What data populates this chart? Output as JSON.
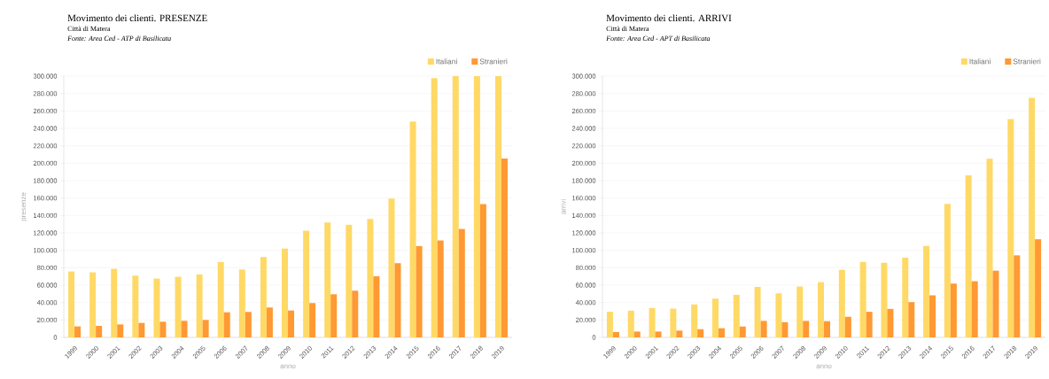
{
  "chart_data": [
    {
      "type": "bar",
      "title": "Movimento dei clienti. PRESENZE",
      "subtitle": "Città di Matera",
      "annotations": [
        "Fonte: Area Ced - ATP di Basilicata"
      ],
      "xlabel": "anno",
      "ylabel": "presenze",
      "categories": [
        "1999",
        "2000",
        "2001",
        "2002",
        "2003",
        "2004",
        "2005",
        "2006",
        "2007",
        "2008",
        "2009",
        "2010",
        "2011",
        "2012",
        "2013",
        "2014",
        "2015",
        "2016",
        "2017",
        "2018",
        "2019"
      ],
      "series": [
        {
          "name": "Italiani",
          "color": "#ffd966",
          "values": [
            75700,
            74700,
            78700,
            70900,
            67500,
            69600,
            72300,
            86500,
            78000,
            92300,
            102000,
            122500,
            132000,
            129300,
            136000,
            159500,
            248000,
            297600,
            300000,
            300000,
            300000
          ]
        },
        {
          "name": "Stranieri",
          "color": "#ff9933",
          "values": [
            12600,
            13200,
            14900,
            16600,
            18000,
            19000,
            20000,
            28800,
            29200,
            34300,
            30900,
            39400,
            49500,
            53600,
            70200,
            85200,
            104900,
            111300,
            124500,
            153000,
            205300
          ]
        }
      ],
      "ylim": [
        0,
        300000
      ],
      "yticks": [
        0,
        {
          "value": 20000,
          "label": "20.000"
        },
        {
          "value": 40000,
          "label": "40.000"
        },
        {
          "value": 60000,
          "label": "60.000"
        },
        {
          "value": 80000,
          "label": "80.000"
        },
        {
          "value": 100000,
          "label": "100.000"
        },
        {
          "value": 120000,
          "label": "120.000"
        },
        {
          "value": 140000,
          "label": "140.000"
        },
        {
          "value": 160000,
          "label": "160.000"
        },
        {
          "value": 180000,
          "label": "180.000"
        },
        {
          "value": 200000,
          "label": "200.000"
        },
        {
          "value": 220000,
          "label": "220.000"
        },
        {
          "value": 240000,
          "label": "240.000"
        },
        {
          "value": 260000,
          "label": "260.000"
        },
        {
          "value": 280000,
          "label": "280.000"
        },
        {
          "value": 300000,
          "label": "300.000"
        }
      ],
      "grid": "y",
      "legend": "top right"
    },
    {
      "type": "bar",
      "title": "Movimento dei clienti. ARRIVI",
      "subtitle": "Città di Matera",
      "annotations": [
        "Fonte: Area Ced - APT di Basilicata"
      ],
      "xlabel": "anno",
      "ylabel": "arrivi",
      "categories": [
        "1999",
        "2000",
        "2001",
        "2002",
        "2003",
        "2004",
        "2005",
        "2006",
        "2007",
        "2008",
        "2009",
        "2010",
        "2011",
        "2012",
        "2013",
        "2014",
        "2015",
        "2016",
        "2017",
        "2018",
        "2019"
      ],
      "series": [
        {
          "name": "Italiani",
          "color": "#ffd966",
          "values": [
            29400,
            30700,
            33700,
            33000,
            37800,
            44500,
            48900,
            58000,
            50600,
            58400,
            63400,
            77600,
            86700,
            85700,
            91500,
            105000,
            153200,
            186000,
            205200,
            250800,
            275000
          ]
        },
        {
          "name": "Stranieri",
          "color": "#ff9933",
          "values": [
            6100,
            6700,
            6700,
            7800,
            9400,
            10500,
            12500,
            18900,
            17500,
            18900,
            18600,
            23600,
            29400,
            32700,
            40500,
            48300,
            61800,
            64500,
            76600,
            94200,
            112700
          ]
        }
      ],
      "ylim": [
        0,
        300000
      ],
      "yticks": [
        0,
        {
          "value": 20000,
          "label": "20.000"
        },
        {
          "value": 40000,
          "label": "40.000"
        },
        {
          "value": 60000,
          "label": "60.000"
        },
        {
          "value": 80000,
          "label": "80.000"
        },
        {
          "value": 100000,
          "label": "100.000"
        },
        {
          "value": 120000,
          "label": "120.000"
        },
        {
          "value": 140000,
          "label": "140.000"
        },
        {
          "value": 160000,
          "label": "160.000"
        },
        {
          "value": 180000,
          "label": "180.000"
        },
        {
          "value": 200000,
          "label": "200.000"
        },
        {
          "value": 220000,
          "label": "220.000"
        },
        {
          "value": 240000,
          "label": "240.000"
        },
        {
          "value": 260000,
          "label": "260.000"
        },
        {
          "value": 280000,
          "label": "280.000"
        },
        {
          "value": 300000,
          "label": "300.000"
        }
      ],
      "grid": "y",
      "legend": "top right"
    }
  ]
}
